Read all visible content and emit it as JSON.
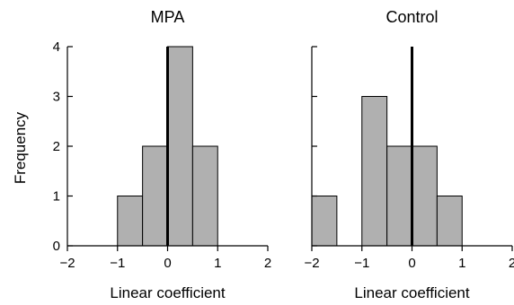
{
  "colors": {
    "bar_fill": "#b0b0b0",
    "bar_stroke": "#000000",
    "axis": "#000000",
    "zero_line": "#000000"
  },
  "chart_data": [
    {
      "type": "bar",
      "title": "MPA",
      "xlabel": "Linear coefficient",
      "ylabel": "Frequency",
      "xlim": [
        -2,
        2
      ],
      "ylim": [
        0,
        4
      ],
      "xticks": [
        -2,
        -1,
        0,
        1,
        2
      ],
      "xtick_labels": [
        "−2",
        "−1",
        "0",
        "1",
        "2"
      ],
      "yticks": [
        0,
        1,
        2,
        3,
        4
      ],
      "ytick_labels": [
        "0",
        "1",
        "2",
        "3",
        "4"
      ],
      "bin_width": 0.5,
      "bins": [
        {
          "x0": -1.0,
          "x1": -0.5,
          "count": 1
        },
        {
          "x0": -0.5,
          "x1": 0.0,
          "count": 2
        },
        {
          "x0": 0.0,
          "x1": 0.5,
          "count": 4
        },
        {
          "x0": 0.5,
          "x1": 1.0,
          "count": 2
        }
      ],
      "reference_line_x": 0,
      "grid": false
    },
    {
      "type": "bar",
      "title": "Control",
      "xlabel": "Linear coefficient",
      "ylabel": "",
      "xlim": [
        -2,
        2
      ],
      "ylim": [
        0,
        4
      ],
      "xticks": [
        -2,
        -1,
        0,
        1,
        2
      ],
      "xtick_labels": [
        "−2",
        "−1",
        "0",
        "1",
        "2"
      ],
      "yticks": [
        0,
        1,
        2,
        3,
        4
      ],
      "ytick_labels": [],
      "bin_width": 0.5,
      "bins": [
        {
          "x0": -2.0,
          "x1": -1.5,
          "count": 1
        },
        {
          "x0": -1.0,
          "x1": -0.5,
          "count": 3
        },
        {
          "x0": -0.5,
          "x1": 0.0,
          "count": 2
        },
        {
          "x0": 0.0,
          "x1": 0.5,
          "count": 2
        },
        {
          "x0": 0.5,
          "x1": 1.0,
          "count": 1
        }
      ],
      "reference_line_x": 0,
      "grid": false
    }
  ]
}
